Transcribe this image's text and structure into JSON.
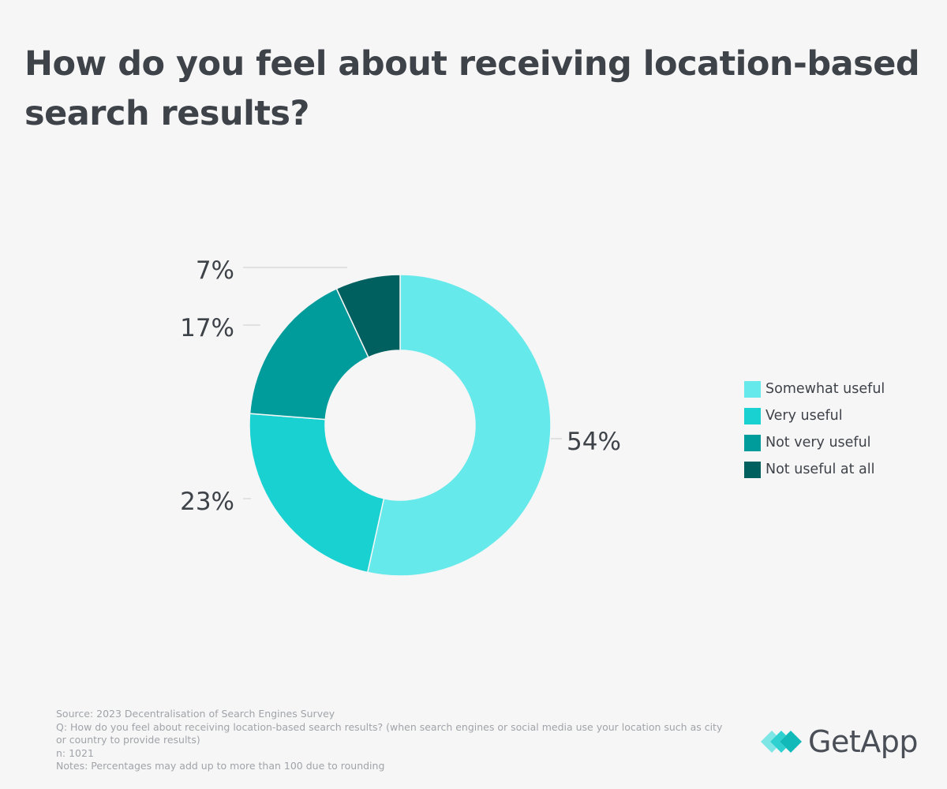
{
  "title": "How do you feel about receiving location-based search results?",
  "chart_data": {
    "type": "pie",
    "donut": true,
    "categories": [
      "Somewhat useful",
      "Very useful",
      "Not very useful",
      "Not useful at all"
    ],
    "values": [
      54,
      23,
      17,
      7
    ],
    "labels": [
      "54%",
      "23%",
      "17%",
      "7%"
    ],
    "colors": [
      "#66e9ea",
      "#1ad1d2",
      "#009b9b",
      "#00605f"
    ],
    "legend_position": "right"
  },
  "footer": {
    "source": "Source: 2023 Decentralisation of Search Engines Survey",
    "question": "Q: How do you feel about receiving location-based search results? (when search engines or social media use your location such as city or country to provide results)",
    "n": "n: 1021",
    "notes": "Notes: Percentages may add up to more than 100 due to rounding"
  },
  "logo": {
    "text": "GetApp",
    "icon": "getapp-logo-icon"
  }
}
